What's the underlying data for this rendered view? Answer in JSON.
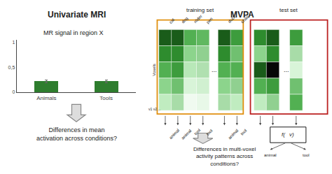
{
  "chart_data": [
    {
      "type": "bar",
      "title": "Univariate MRI",
      "subtitle": "MR signal in region X",
      "categories": [
        "Animals",
        "Tools"
      ],
      "values": [
        0.22,
        0.22
      ],
      "error": [
        0.025,
        0.025
      ],
      "color": "#2e7d2e",
      "ylim": [
        0,
        1.05
      ],
      "yticks": [
        0,
        {
          "value": 0.5,
          "label": "0,5"
        },
        1
      ],
      "grid": false,
      "annotations": [
        "Differences in mean\nactivation across conditions?"
      ]
    },
    {
      "type": "diagram",
      "title": "MVPA",
      "ylabel": "Voxels",
      "voxels_label": "v1 v2 ...",
      "training_label": "training set",
      "test_label": "test set",
      "ellipsis": "...",
      "train_labels": [
        "cat",
        "dog",
        "röder",
        "pen",
        "duck",
        "chair"
      ],
      "train_classes": [
        "animal",
        "animal",
        "tool",
        "tool",
        "animal",
        "tool"
      ],
      "classifier_label": "f(⃗v)",
      "output_labels": [
        "animal",
        "tool"
      ],
      "training_color": "#e09010",
      "test_color": "#bb2020",
      "train_cells": [
        [
          "#1a5c1a",
          "#2e8c2e",
          "#52b052",
          "#8cd48c",
          "#c0ecc0"
        ],
        [
          "#1a5c1a",
          "#2e8c2e",
          "#3d9c3d",
          "#70c070",
          "#a8dca8"
        ],
        [
          "#52b052",
          "#8cd48c",
          "#b8e8b8",
          "#d8f4d8",
          "#f0faf0"
        ],
        [
          "#60b860",
          "#90d090",
          "#b0e0b0",
          "#d0f0d0",
          "#e8f8e8"
        ],
        [
          "#1a5c1a",
          "#2e8c2e",
          "#52b052",
          "#8cd48c",
          "#a8dca8"
        ],
        [
          "#3d9c3d",
          "#70c070",
          "#52b052",
          "#90d090",
          "#c0ecc0"
        ]
      ],
      "test_cells": [
        [
          "#2e8c2e",
          "#8cd48c",
          "#1a5c1a",
          "#52b052",
          "#c0ecc0"
        ],
        [
          "#1a5c1a",
          "#2e8c2e",
          "#060606",
          "#3d9c3d",
          "#90d090"
        ],
        [
          "#3d9c3d",
          "#a8dca8",
          "#d8f4d8",
          "#70c070",
          "#52b052"
        ]
      ],
      "annotations": [
        "Differences in multi-voxel\nactivity patterns across\nconditions?"
      ]
    }
  ]
}
